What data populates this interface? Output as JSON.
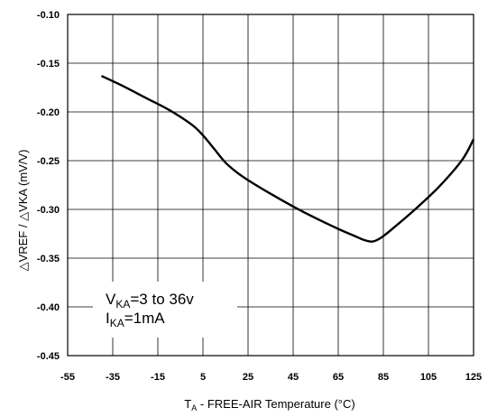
{
  "chart_data": {
    "type": "line",
    "xlabel": {
      "main": "T",
      "sub": "A",
      "rest": " - FREE-AIR Temperature (°C)"
    },
    "ylabel": "△VREF / △VKA (mV/V)",
    "xlim": [
      -55,
      125
    ],
    "ylim": [
      -0.45,
      -0.1
    ],
    "x_ticks": [
      -55,
      -35,
      -15,
      5,
      25,
      45,
      65,
      85,
      105,
      125
    ],
    "y_ticks": [
      "-0.10",
      "-0.15",
      "-0.20",
      "-0.25",
      "-0.30",
      "-0.35",
      "-0.40",
      "-0.45"
    ],
    "y_tick_values": [
      -0.1,
      -0.15,
      -0.2,
      -0.25,
      -0.3,
      -0.35,
      -0.4,
      -0.45
    ],
    "grid": true,
    "annotations": [
      {
        "main": "V",
        "sub": "KA",
        "rest": "=3 to 36v"
      },
      {
        "main": "I",
        "sub": "KA",
        "rest": "=1mA"
      }
    ],
    "series": [
      {
        "color": "#000000",
        "x": [
          -40,
          -30,
          -20,
          -10,
          0,
          5,
          10,
          15,
          20,
          25,
          35,
          45,
          55,
          65,
          72,
          76,
          80,
          84,
          90,
          100,
          110,
          120,
          125
        ],
        "y": [
          -0.163,
          -0.174,
          -0.186,
          -0.198,
          -0.213,
          -0.224,
          -0.238,
          -0.252,
          -0.262,
          -0.27,
          -0.284,
          -0.297,
          -0.309,
          -0.32,
          -0.327,
          -0.331,
          -0.333,
          -0.329,
          -0.318,
          -0.298,
          -0.276,
          -0.249,
          -0.228
        ]
      }
    ]
  }
}
